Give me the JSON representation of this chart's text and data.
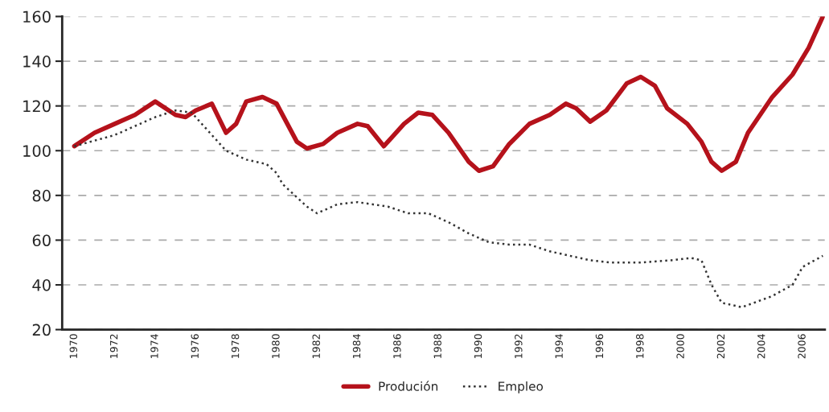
{
  "chart_data": {
    "type": "line",
    "xlim": [
      1969.4,
      2007.1
    ],
    "xticks": [
      1970,
      1972,
      1974,
      1976,
      1978,
      1980,
      1982,
      1984,
      1986,
      1988,
      1990,
      1992,
      1994,
      1996,
      1998,
      2000,
      2002,
      2004,
      2006
    ],
    "ylim": [
      20,
      160
    ],
    "yticks": [
      20,
      40,
      60,
      80,
      100,
      120,
      140,
      160
    ],
    "grid": "y",
    "legend": "bottom",
    "series": [
      {
        "name": "Produción",
        "color": "#b5121b",
        "line_style": "solid",
        "x": [
          1970,
          1971,
          1972,
          1973,
          1974,
          1975,
          1975.5,
          1976,
          1976.8,
          1977.5,
          1978,
          1978.5,
          1979.3,
          1980,
          1981,
          1981.5,
          1982.3,
          1983,
          1984,
          1984.5,
          1985.3,
          1985.7,
          1986.3,
          1987,
          1987.7,
          1988.5,
          1989.5,
          1990,
          1990.7,
          1991.5,
          1992.5,
          1993.5,
          1994.3,
          1994.8,
          1995.5,
          1996.3,
          1997.3,
          1998,
          1998.7,
          1999.3,
          2000.3,
          2001,
          2001.5,
          2002,
          2002.7,
          2003.3,
          2004.5,
          2005.5,
          2006.3,
          2007
        ],
        "values": [
          102,
          108,
          112,
          116,
          122,
          116,
          115,
          118,
          121,
          108,
          112,
          122,
          124,
          121,
          104,
          101,
          103,
          108,
          112,
          111,
          102,
          106,
          112,
          117,
          116,
          108,
          95,
          91,
          93,
          103,
          112,
          116,
          121,
          119,
          113,
          118,
          130,
          133,
          129,
          119,
          112,
          104,
          95,
          91,
          95,
          108,
          124,
          134,
          146,
          160
        ]
      },
      {
        "name": "Empleo",
        "color": "#333333",
        "line_style": "dotted",
        "x": [
          1970,
          1972,
          1973,
          1974,
          1975,
          1975.8,
          1976.5,
          1977.5,
          1978.5,
          1979.5,
          1980,
          1980.3,
          1981.5,
          1982,
          1983,
          1984,
          1985.5,
          1986.5,
          1987.5,
          1988.5,
          1989.5,
          1990.5,
          1991.5,
          1992.5,
          1993.5,
          1994.5,
          1995.5,
          1996.5,
          1998,
          1999.5,
          2000.5,
          2001,
          2001.5,
          2002,
          2003,
          2004.5,
          2005.5,
          2006,
          2007
        ],
        "values": [
          102,
          107,
          111,
          115,
          118,
          117,
          110,
          100,
          96,
          94,
          90,
          85,
          75,
          72,
          76,
          77,
          75,
          72,
          72,
          68,
          63,
          59,
          58,
          58,
          55,
          53,
          51,
          50,
          50,
          51,
          52,
          51,
          40,
          32,
          30,
          35,
          40,
          48,
          53
        ]
      }
    ]
  }
}
